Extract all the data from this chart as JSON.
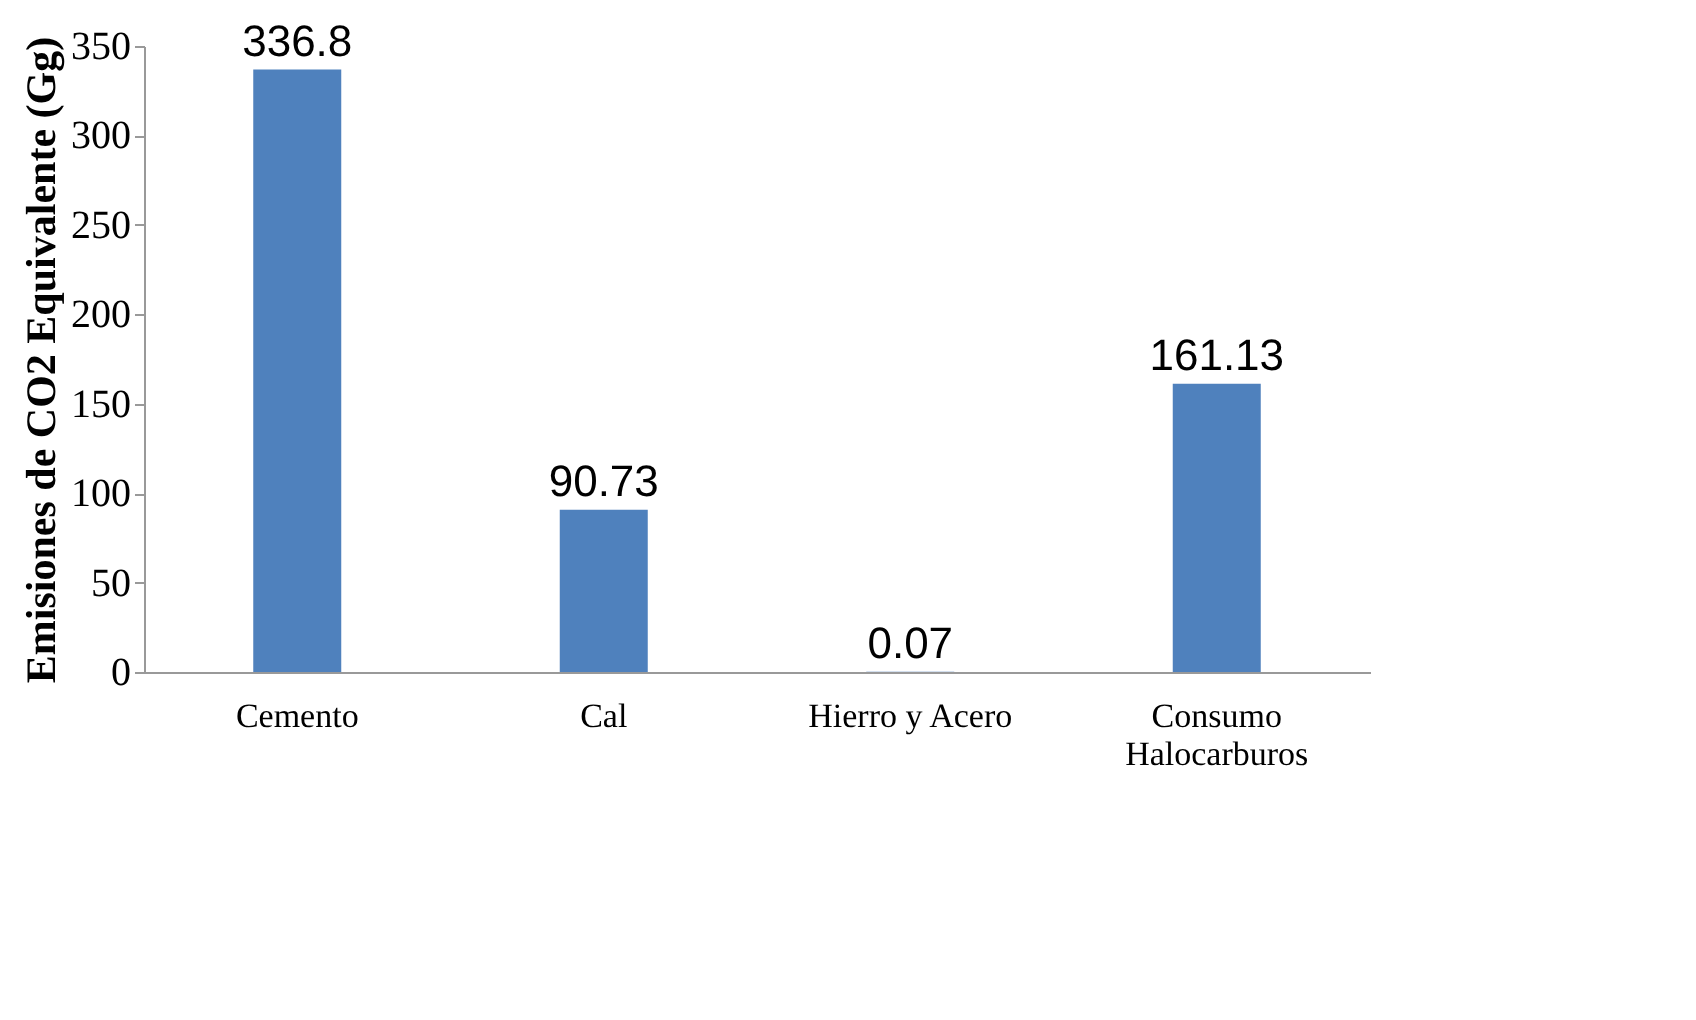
{
  "chart_data": {
    "type": "bar",
    "ylabel": "Emisiones de CO2 Equivalente (Gg)",
    "categories": [
      "Cemento",
      "Cal",
      "Hierro y Acero",
      "Consumo\nHalocarburos"
    ],
    "values": [
      336.8,
      90.73,
      0.07,
      161.13
    ],
    "color": "#4f81bd",
    "ylim": [
      0,
      350
    ],
    "yticks": [
      0,
      50,
      100,
      150,
      200,
      250,
      300,
      350
    ],
    "grid": false,
    "data_labels": true
  }
}
